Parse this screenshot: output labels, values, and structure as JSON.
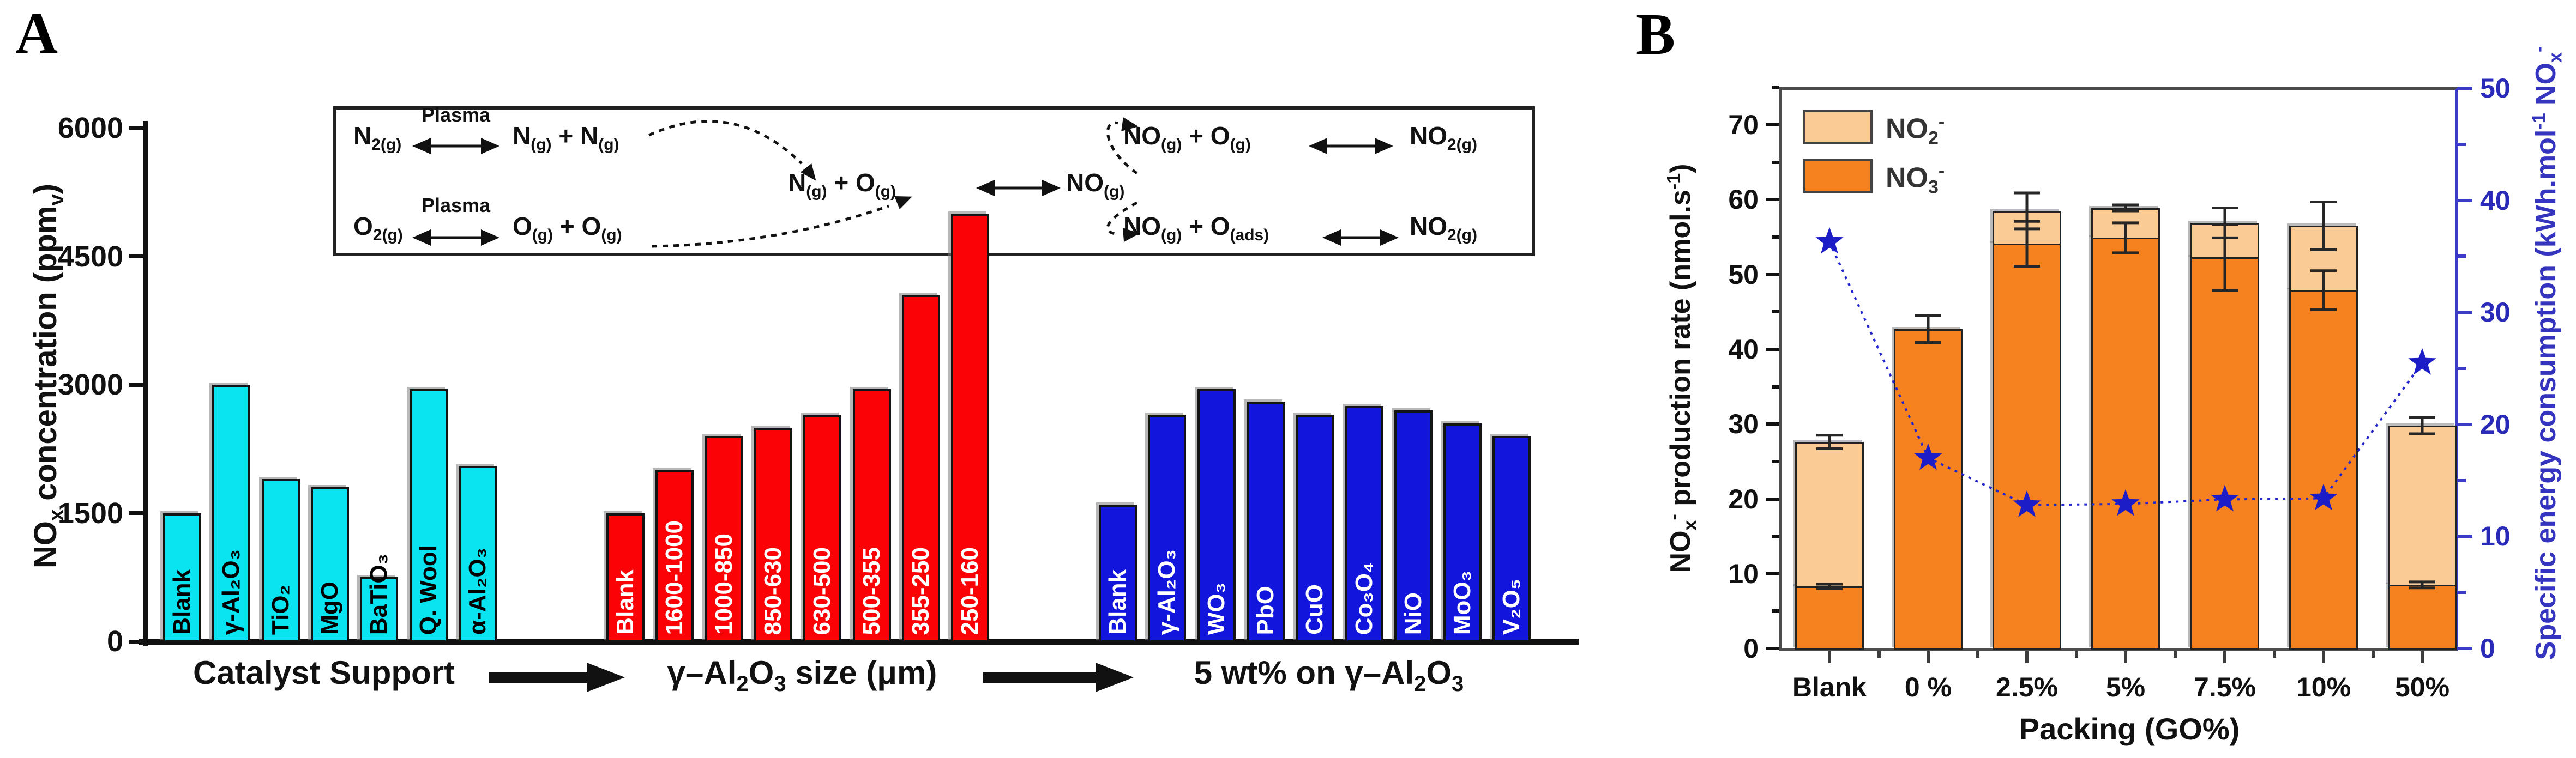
{
  "page": {
    "background": "#FFFFFF"
  },
  "panel_a": {
    "title": "A",
    "ylabel_html": "NO<sub>x</sub> concentration (ppm<sub>v</sub>)",
    "ytick_labels": [
      "0",
      "1500",
      "3000",
      "4500",
      "6000"
    ],
    "group_labels_html": [
      "Catalyst Support",
      "γ–Al<sub>2</sub>O<sub>3</sub> size (μm)",
      "5 wt% on γ–Al<sub>2</sub>O<sub>3</sub>"
    ],
    "inset": {
      "plasma_label": "Plasma",
      "n2": "N<sub>2(g)</sub>",
      "n_plus_n": "N<sub>(g)</sub> + N<sub>(g)</sub>",
      "o2": "O<sub>2(g)</sub>",
      "o_plus_o": "O<sub>(g)</sub> + O<sub>(g)</sub>",
      "n_plus_o": "N<sub>(g)</sub> + O<sub>(g)</sub>",
      "no": "NO<sub>(g)</sub>",
      "no_plus_o_g": "NO<sub>(g)</sub> + O<sub>(g)</sub>",
      "no2_top": "NO<sub>2(g)</sub>",
      "no_plus_o_ads": "NO<sub>(g)</sub> + O<sub>(ads)</sub>",
      "no2_bottom": "NO<sub>2(g)</sub>"
    }
  },
  "panel_b": {
    "title": "B",
    "ylabel_left_html": "NO<sub>x</sub><sup>-</sup> production rate (nmol.s<sup>-1</sup>)",
    "ylabel_right_html": "Specific energy consumption (kWh.mol<sup>-1</sup> NO<sub>x</sub><sup>-</sup>",
    "xlabel": "Packing (GO%)",
    "legend": [
      {
        "label_html": "NO<sub>2</sub><sup>-</sup>",
        "color": "#FBCB96"
      },
      {
        "label_html": "NO<sub>3</sub><sup>-</sup>",
        "color": "#F5821F"
      }
    ]
  },
  "chart_data": [
    {
      "id": "A",
      "type": "bar",
      "title": "A",
      "ylabel": "NOx concentration (ppmv)",
      "ylim": [
        0,
        6000
      ],
      "yticks": [
        0,
        1500,
        3000,
        4500,
        6000
      ],
      "grid": false,
      "groups": [
        {
          "label": "Catalyst Support",
          "bar_color": "#0AE4F0",
          "label_text_color": "#000000",
          "bars": [
            {
              "label": "Blank",
              "value": 1500
            },
            {
              "label": "γ-Al₂O₃",
              "value": 3000
            },
            {
              "label": "TiO₂",
              "value": 1900
            },
            {
              "label": "MgO",
              "value": 1800
            },
            {
              "label": "BaTiO₃",
              "value": 750
            },
            {
              "label": "Q. Wool",
              "value": 2950
            },
            {
              "label": "α-Al₂O₃",
              "value": 2050
            }
          ]
        },
        {
          "label": "γ–Al₂O₃ size (μm)",
          "bar_color": "#FB0207",
          "label_text_color": "#FFFFFF",
          "bars": [
            {
              "label": "Blank",
              "value": 1500
            },
            {
              "label": "1600-1000",
              "value": 2000
            },
            {
              "label": "1000-850",
              "value": 2400
            },
            {
              "label": "850-630",
              "value": 2500
            },
            {
              "label": "630-500",
              "value": 2650
            },
            {
              "label": "500-355",
              "value": 2950
            },
            {
              "label": "355-250",
              "value": 4050
            },
            {
              "label": "250-160",
              "value": 5000
            }
          ]
        },
        {
          "label": "5 wt% on γ–Al₂O₃",
          "bar_color": "#1216DC",
          "label_text_color": "#FFFFFF",
          "bars": [
            {
              "label": "Blank",
              "value": 1600
            },
            {
              "label": "γ-Al₂O₃",
              "value": 2650
            },
            {
              "label": "WO₃",
              "value": 2950
            },
            {
              "label": "PbO",
              "value": 2800
            },
            {
              "label": "CuO",
              "value": 2650
            },
            {
              "label": "Co₃O₄",
              "value": 2750
            },
            {
              "label": "NiO",
              "value": 2700
            },
            {
              "label": "MoO₃",
              "value": 2550
            },
            {
              "label": "V₂O₅",
              "value": 2400
            }
          ]
        }
      ]
    },
    {
      "id": "B",
      "type": "stacked-bar+line",
      "categories": [
        "Blank",
        "0 %",
        "2.5%",
        "5%",
        "7.5%",
        "10%",
        "50%"
      ],
      "stack_series": [
        {
          "name": "NO3-",
          "color": "#F5821F",
          "values": [
            8.3,
            42.7,
            54.1,
            54.9,
            52.3,
            47.9,
            8.5
          ],
          "errors": [
            0.3,
            1.8,
            3.0,
            2.0,
            4.4,
            2.6,
            0.4
          ]
        },
        {
          "name": "NO2-",
          "color": "#FBCB96",
          "values": [
            19.3,
            0,
            4.4,
            4.0,
            4.6,
            8.6,
            21.3
          ]
        }
      ],
      "total_errors": [
        0.9,
        1.8,
        2.4,
        0.4,
        2.0,
        3.2,
        1.1
      ],
      "line_series": {
        "name": "Specific energy consumption",
        "axis": "right",
        "color": "#2324C9",
        "marker": "star",
        "values": [
          36.3,
          17.0,
          12.8,
          12.9,
          13.3,
          13.4,
          25.5
        ]
      },
      "xlabel": "Packing (GO%)",
      "ylabel_left": "NOx- production rate (nmol.s-1)",
      "ylabel_right": "Specific energy consumption (kWh.mol-1 NOx-)",
      "ylim_left": [
        0,
        75
      ],
      "yticks_left": [
        0,
        10,
        20,
        30,
        40,
        50,
        60,
        70
      ],
      "ylim_right": [
        0,
        50
      ],
      "yticks_right": [
        0,
        10,
        20,
        30,
        40,
        50
      ],
      "legend": [
        "NO2-",
        "NO3-"
      ],
      "legend_position": "top-left",
      "grid": false
    }
  ]
}
